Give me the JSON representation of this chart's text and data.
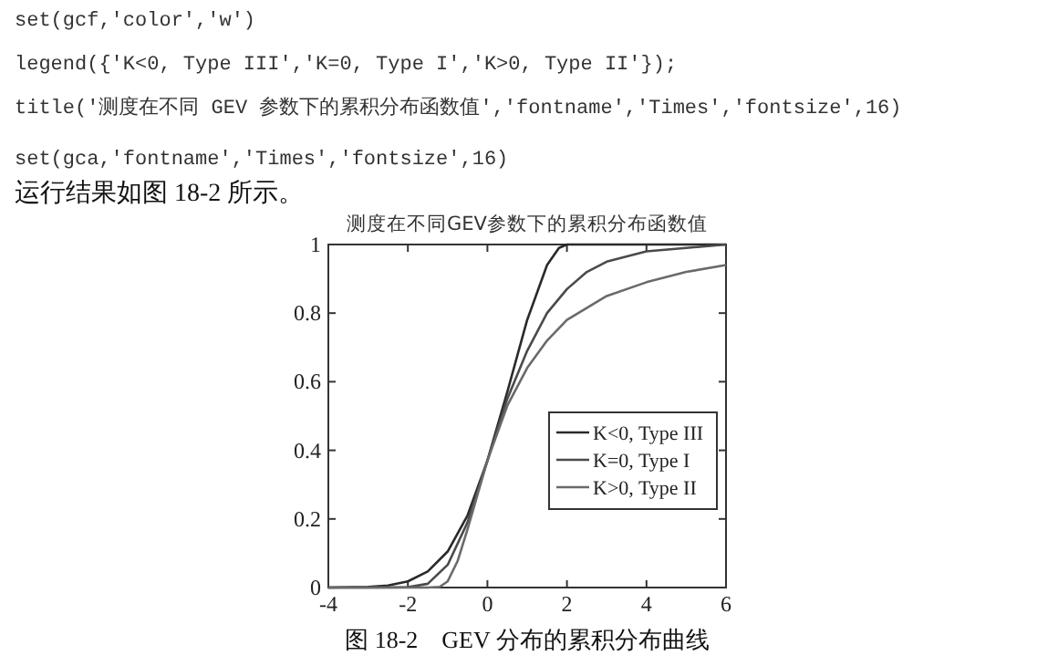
{
  "chart_data": {
    "type": "line",
    "title": "测度在不同GEV参数下的累积分布函数值",
    "annotations": [
      "set(gcf,'color','w')",
      "legend({'K<0, Type III','K=0, Type I','K>0, Type II'});",
      "title('测度在不同 GEV 参数下的累积分布函数值','fontname','Times','fontsize',16)",
      "set(gca,'fontname','Times','fontsize',16)",
      "运行结果如图 18-2 所示。",
      "图 18-2　GEV 分布的累积分布曲线"
    ],
    "series": [
      {
        "name": "K<0, Type III",
        "color": "#2a2a2a",
        "x": [
          -4,
          -3,
          -2.5,
          -2,
          -1.5,
          -1,
          -0.5,
          0,
          0.5,
          1,
          1.5,
          1.8,
          2,
          4,
          6
        ],
        "values": [
          0,
          0.002,
          0.006,
          0.018,
          0.047,
          0.105,
          0.21,
          0.37,
          0.57,
          0.78,
          0.94,
          0.99,
          1,
          1,
          1
        ]
      },
      {
        "name": "K=0, Type I",
        "color": "#4a4a4a",
        "x": [
          -4,
          -3,
          -2,
          -1.5,
          -1,
          -0.5,
          0,
          0.5,
          1,
          1.5,
          2,
          2.5,
          3,
          4,
          5,
          6
        ],
        "values": [
          0,
          0,
          0.001,
          0.011,
          0.066,
          0.19,
          0.37,
          0.55,
          0.69,
          0.8,
          0.87,
          0.92,
          0.95,
          0.98,
          0.99,
          1
        ]
      },
      {
        "name": "K>0, Type II",
        "color": "#6a6a6a",
        "x": [
          -4,
          -2,
          -1.5,
          -1.2,
          -1,
          -0.75,
          -0.5,
          -0.25,
          0,
          0.5,
          1,
          1.5,
          2,
          3,
          4,
          5,
          6
        ],
        "values": [
          0,
          0,
          0,
          0.002,
          0.018,
          0.077,
          0.17,
          0.27,
          0.37,
          0.53,
          0.64,
          0.72,
          0.78,
          0.85,
          0.89,
          0.92,
          0.94
        ]
      }
    ],
    "xlim": [
      -4,
      6
    ],
    "xticks": [
      -4,
      -2,
      0,
      2,
      4,
      6
    ],
    "ylim": [
      0,
      1
    ],
    "yticks": [
      0,
      0.2,
      0.4,
      0.6,
      0.8,
      1
    ],
    "legend": "right"
  }
}
